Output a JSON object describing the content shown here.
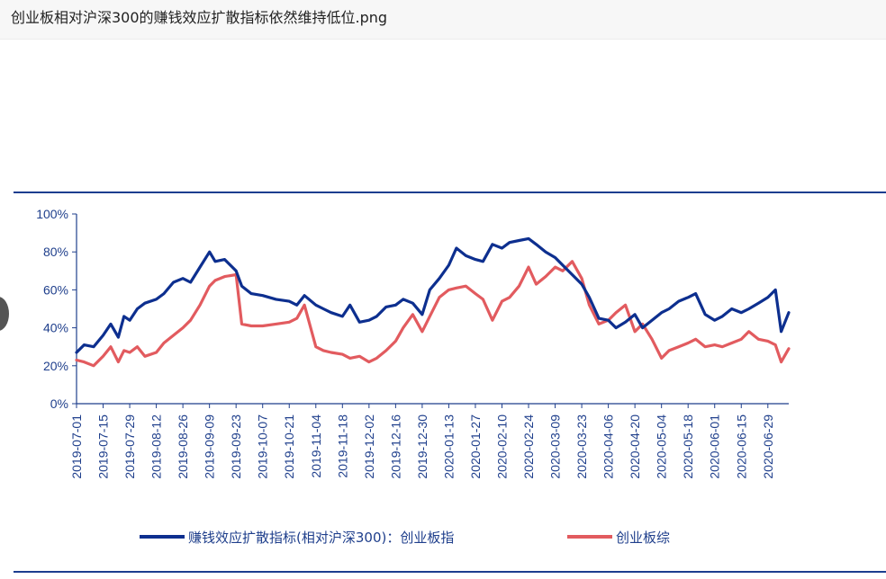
{
  "window": {
    "title": "创业板相对沪深300的赚钱效应扩散指标依然维持低位.png"
  },
  "colors": {
    "blue": "#0d2f8f",
    "red": "#e25b5f",
    "axis": "#1f3f8c"
  },
  "chart_data": {
    "type": "line",
    "title": "",
    "xlabel": "",
    "ylabel": "",
    "ylim": [
      0,
      100
    ],
    "yticks": [
      0,
      20,
      40,
      60,
      80,
      100
    ],
    "ytick_labels": [
      "0%",
      "20%",
      "40%",
      "60%",
      "80%",
      "100%"
    ],
    "x_range": [
      "2019-07-01",
      "2020-07-10"
    ],
    "xticks": [
      "2019-07-01",
      "2019-07-15",
      "2019-07-29",
      "2019-08-12",
      "2019-08-26",
      "2019-09-09",
      "2019-09-23",
      "2019-10-07",
      "2019-10-21",
      "2019-11-04",
      "2019-11-18",
      "2019-12-02",
      "2019-12-16",
      "2019-12-30",
      "2020-01-13",
      "2020-01-27",
      "2020-02-10",
      "2020-02-24",
      "2020-03-09",
      "2020-03-23",
      "2020-04-06",
      "2020-04-20",
      "2020-05-04",
      "2020-05-18",
      "2020-06-01",
      "2020-06-15",
      "2020-06-29"
    ],
    "legend_position": "bottom",
    "grid": false,
    "series": [
      {
        "name": "赚钱效应扩散指标(相对沪深300)：创业板指",
        "color": "#0d2f8f",
        "x": [
          "2019-07-01",
          "2019-07-05",
          "2019-07-10",
          "2019-07-15",
          "2019-07-19",
          "2019-07-23",
          "2019-07-26",
          "2019-07-29",
          "2019-08-02",
          "2019-08-06",
          "2019-08-12",
          "2019-08-16",
          "2019-08-21",
          "2019-08-26",
          "2019-08-30",
          "2019-09-04",
          "2019-09-09",
          "2019-09-12",
          "2019-09-17",
          "2019-09-23",
          "2019-09-26",
          "2019-10-01",
          "2019-10-07",
          "2019-10-14",
          "2019-10-21",
          "2019-10-25",
          "2019-10-29",
          "2019-11-04",
          "2019-11-08",
          "2019-11-12",
          "2019-11-18",
          "2019-11-22",
          "2019-11-27",
          "2019-12-02",
          "2019-12-06",
          "2019-12-11",
          "2019-12-16",
          "2019-12-20",
          "2019-12-25",
          "2019-12-30",
          "2020-01-03",
          "2020-01-08",
          "2020-01-13",
          "2020-01-17",
          "2020-01-22",
          "2020-01-27",
          "2020-01-31",
          "2020-02-05",
          "2020-02-10",
          "2020-02-14",
          "2020-02-19",
          "2020-02-24",
          "2020-02-28",
          "2020-03-04",
          "2020-03-09",
          "2020-03-13",
          "2020-03-18",
          "2020-03-23",
          "2020-03-27",
          "2020-04-01",
          "2020-04-06",
          "2020-04-10",
          "2020-04-15",
          "2020-04-20",
          "2020-04-24",
          "2020-04-29",
          "2020-05-04",
          "2020-05-08",
          "2020-05-13",
          "2020-05-18",
          "2020-05-22",
          "2020-05-27",
          "2020-06-01",
          "2020-06-05",
          "2020-06-10",
          "2020-06-15",
          "2020-06-19",
          "2020-06-24",
          "2020-06-29",
          "2020-07-03",
          "2020-07-06",
          "2020-07-10"
        ],
        "values": [
          27,
          31,
          30,
          36,
          42,
          35,
          46,
          44,
          50,
          53,
          55,
          58,
          64,
          66,
          64,
          72,
          80,
          75,
          76,
          70,
          62,
          58,
          57,
          55,
          54,
          52,
          57,
          52,
          50,
          48,
          46,
          52,
          43,
          44,
          46,
          51,
          52,
          55,
          53,
          47,
          60,
          66,
          73,
          82,
          78,
          76,
          75,
          84,
          82,
          85,
          86,
          87,
          84,
          80,
          77,
          73,
          68,
          63,
          56,
          45,
          44,
          40,
          43,
          47,
          40,
          44,
          48,
          50,
          54,
          56,
          58,
          47,
          44,
          46,
          50,
          48,
          50,
          53,
          56,
          60,
          38,
          48
        ]
      },
      {
        "name": "创业板综",
        "color": "#e25b5f",
        "x": [
          "2019-07-01",
          "2019-07-05",
          "2019-07-10",
          "2019-07-15",
          "2019-07-19",
          "2019-07-23",
          "2019-07-26",
          "2019-07-29",
          "2019-08-02",
          "2019-08-06",
          "2019-08-12",
          "2019-08-16",
          "2019-08-21",
          "2019-08-26",
          "2019-08-30",
          "2019-09-04",
          "2019-09-09",
          "2019-09-12",
          "2019-09-17",
          "2019-09-23",
          "2019-09-26",
          "2019-10-01",
          "2019-10-07",
          "2019-10-14",
          "2019-10-21",
          "2019-10-25",
          "2019-10-29",
          "2019-11-04",
          "2019-11-08",
          "2019-11-12",
          "2019-11-18",
          "2019-11-22",
          "2019-11-27",
          "2019-12-02",
          "2019-12-06",
          "2019-12-11",
          "2019-12-16",
          "2019-12-20",
          "2019-12-25",
          "2019-12-30",
          "2020-01-03",
          "2020-01-08",
          "2020-01-13",
          "2020-01-17",
          "2020-01-22",
          "2020-01-27",
          "2020-01-31",
          "2020-02-05",
          "2020-02-10",
          "2020-02-14",
          "2020-02-19",
          "2020-02-24",
          "2020-02-28",
          "2020-03-04",
          "2020-03-09",
          "2020-03-13",
          "2020-03-18",
          "2020-03-23",
          "2020-03-27",
          "2020-04-01",
          "2020-04-06",
          "2020-04-10",
          "2020-04-15",
          "2020-04-20",
          "2020-04-24",
          "2020-04-29",
          "2020-05-04",
          "2020-05-08",
          "2020-05-13",
          "2020-05-18",
          "2020-05-22",
          "2020-05-27",
          "2020-06-01",
          "2020-06-05",
          "2020-06-10",
          "2020-06-15",
          "2020-06-19",
          "2020-06-24",
          "2020-06-29",
          "2020-07-03",
          "2020-07-06",
          "2020-07-10"
        ],
        "values": [
          23,
          22,
          20,
          25,
          30,
          22,
          28,
          27,
          30,
          25,
          27,
          32,
          36,
          40,
          44,
          52,
          62,
          65,
          67,
          68,
          42,
          41,
          41,
          42,
          43,
          45,
          52,
          30,
          28,
          27,
          26,
          24,
          25,
          22,
          24,
          28,
          33,
          40,
          47,
          38,
          46,
          56,
          60,
          61,
          62,
          58,
          55,
          44,
          54,
          56,
          62,
          72,
          63,
          67,
          72,
          70,
          75,
          66,
          52,
          42,
          44,
          48,
          52,
          38,
          42,
          34,
          24,
          28,
          30,
          32,
          34,
          30,
          31,
          30,
          32,
          34,
          38,
          34,
          33,
          31,
          22,
          29
        ]
      }
    ]
  }
}
